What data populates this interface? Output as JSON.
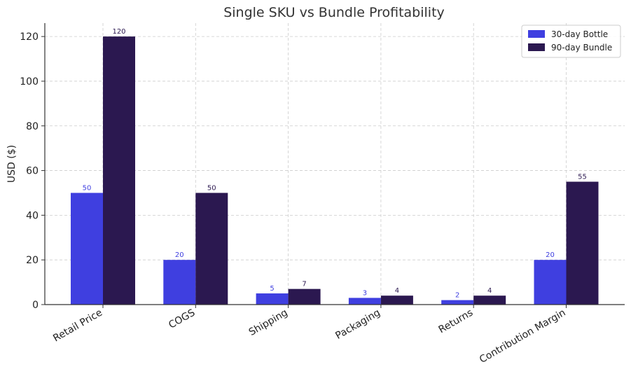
{
  "chart_data": {
    "type": "bar",
    "title": "Single SKU vs Bundle Profitability",
    "xlabel": "",
    "ylabel": "USD ($)",
    "ylim": [
      0,
      126
    ],
    "yticks": [
      0,
      20,
      40,
      60,
      80,
      100,
      120
    ],
    "grid": true,
    "legend_position": "top-right",
    "categories": [
      "Retail Price",
      "COGS",
      "Shipping",
      "Packaging",
      "Returns",
      "Contribution Margin"
    ],
    "series": [
      {
        "name": "30-day Bottle",
        "color": "#3f3fe0",
        "label_color": "#3f3fe0",
        "values": [
          50,
          20,
          5,
          3,
          2,
          20
        ]
      },
      {
        "name": "90-day Bundle",
        "color": "#2b1850",
        "label_color": "#2b1850",
        "values": [
          120,
          50,
          7,
          4,
          4,
          55
        ]
      }
    ]
  }
}
